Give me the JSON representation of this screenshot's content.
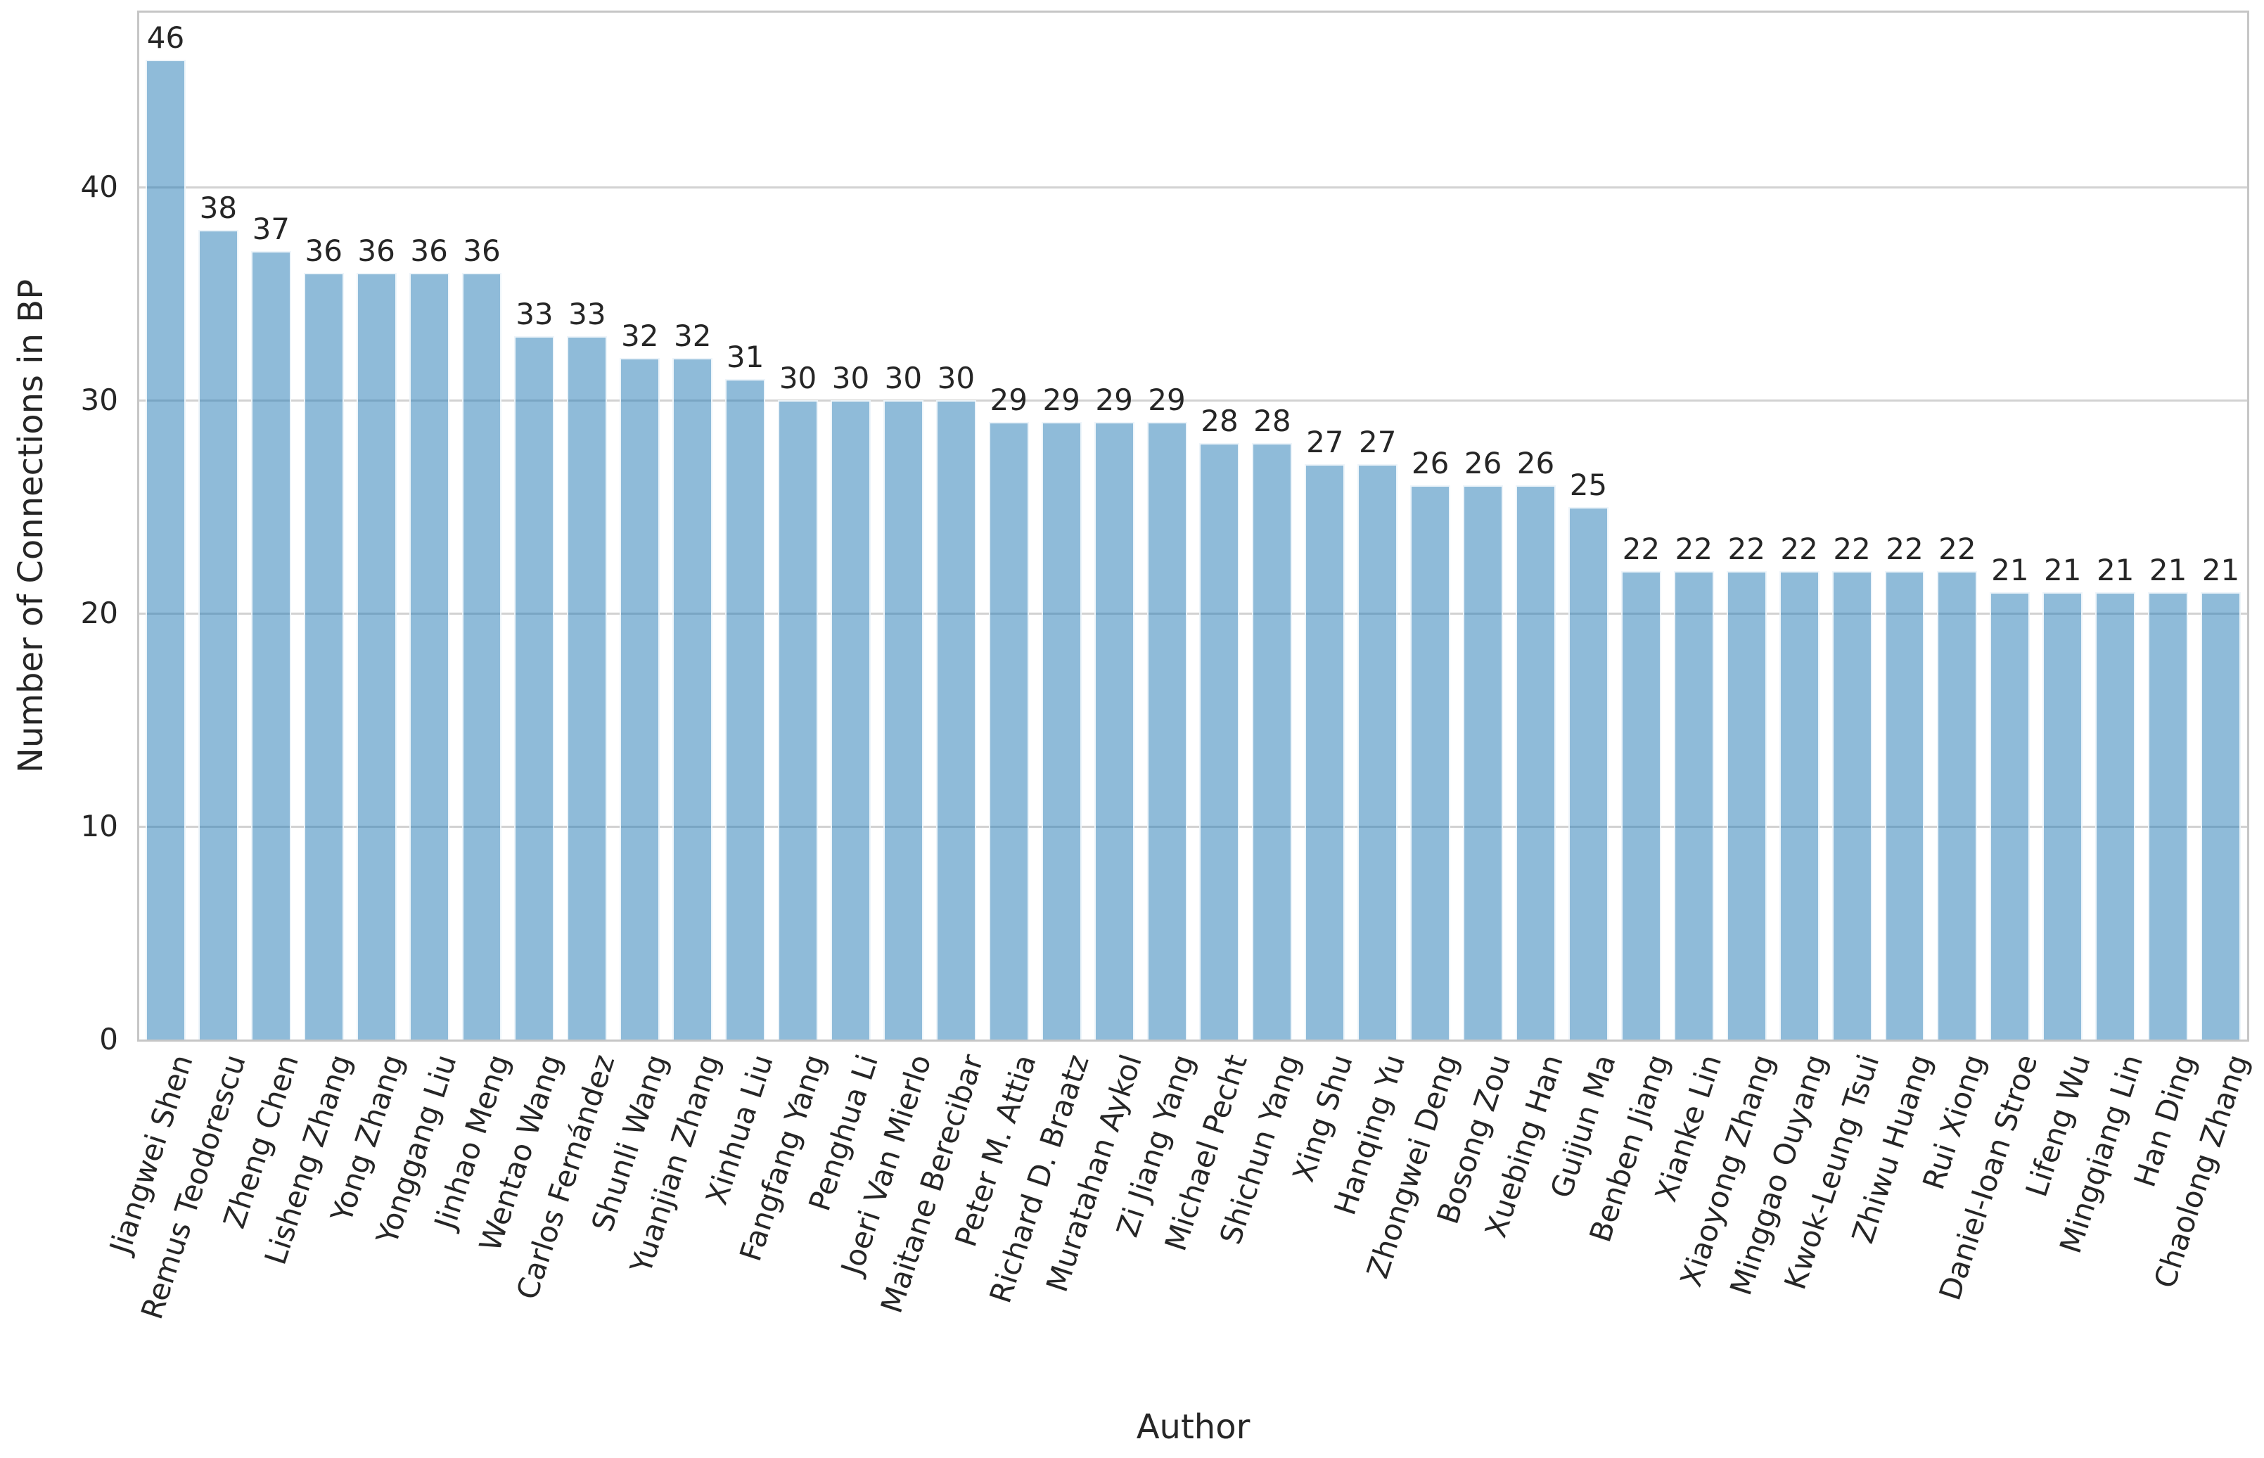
{
  "chart_data": {
    "type": "bar",
    "title": "",
    "xlabel": "Author",
    "ylabel": "Number of Connections in BP",
    "categories": [
      "Jiangwei Shen",
      "Remus Teodorescu",
      "Zheng Chen",
      "Lisheng Zhang",
      "Yong Zhang",
      "Yonggang Liu",
      "Jinhao Meng",
      "Wentao Wang",
      "Carlos Fernández",
      "Shunli Wang",
      "Yuanjian Zhang",
      "Xinhua Liu",
      "Fangfang Yang",
      "Penghua Li",
      "Joeri Van Mierlo",
      "Maitane Berecibar",
      "Peter M. Attia",
      "Richard D. Braatz",
      "Muratahan Aykol",
      "Zi Jiang Yang",
      "Michael Pecht",
      "Shichun Yang",
      "Xing Shu",
      "Hanqing Yu",
      "Zhongwei Deng",
      "Bosong Zou",
      "Xuebing Han",
      "Guijun Ma",
      "Benben Jiang",
      "Xianke Lin",
      "Xiaoyong Zhang",
      "Minggao Ouyang",
      "Kwok-Leung Tsui",
      "Zhiwu Huang",
      "Rui Xiong",
      "Daniel-Ioan Stroe",
      "Lifeng Wu",
      "Mingqiang Lin",
      "Han Ding",
      "Chaolong Zhang"
    ],
    "values": [
      46,
      38,
      37,
      36,
      36,
      36,
      36,
      33,
      33,
      32,
      32,
      31,
      30,
      30,
      30,
      30,
      29,
      29,
      29,
      29,
      28,
      28,
      27,
      27,
      26,
      26,
      26,
      25,
      22,
      22,
      22,
      22,
      22,
      22,
      22,
      21,
      21,
      21,
      21,
      21
    ],
    "bar_value_labels_shown": true,
    "yticks": [
      0,
      10,
      20,
      30,
      40
    ],
    "ylim": [
      0,
      48.2
    ],
    "grid": "horizontal",
    "legend": "none",
    "colors": {
      "bar_fill": "rgba(31,119,180,0.5)",
      "bar_edge": "#ffffff",
      "grid_line": "#d2d2d2",
      "spine": "#c6c6c6",
      "text": "#262626"
    }
  }
}
